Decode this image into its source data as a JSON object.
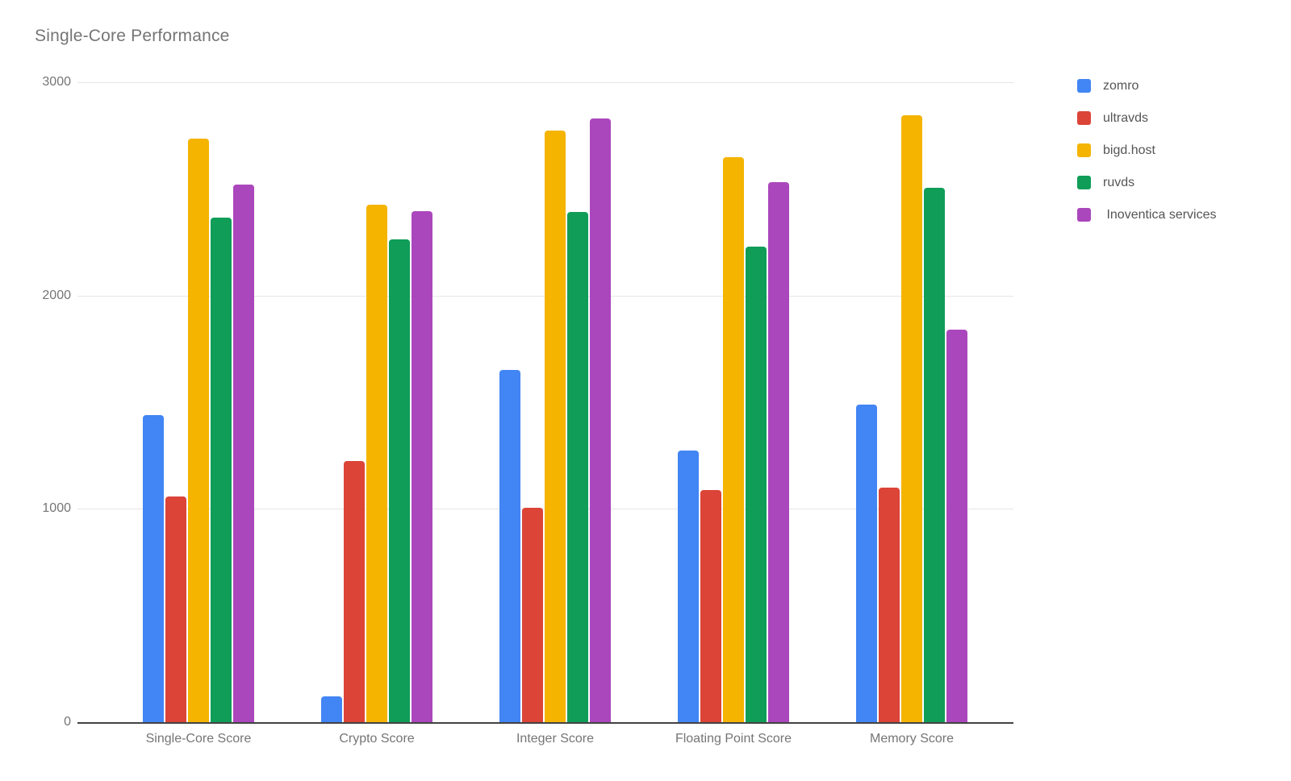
{
  "chart_data": {
    "type": "bar",
    "title": "Single-Core Performance",
    "categories": [
      "Single-Core Score",
      "Crypto Score",
      "Integer Score",
      "Floating Point Score",
      "Memory Score"
    ],
    "series": [
      {
        "name": "zomro",
        "color": "#4285F4",
        "values": [
          1440,
          120,
          1650,
          1275,
          1490
        ]
      },
      {
        "name": "ultravds",
        "color": "#DB4437",
        "values": [
          1060,
          1225,
          1005,
          1090,
          1100
        ]
      },
      {
        "name": "bigd.host",
        "color": "#F4B400",
        "values": [
          2735,
          2425,
          2775,
          2650,
          2845
        ]
      },
      {
        "name": "ruvds",
        "color": "#0F9D58",
        "values": [
          2365,
          2265,
          2390,
          2230,
          2505
        ]
      },
      {
        "name": " Inoventica services",
        "color": "#AB47BC",
        "values": [
          2520,
          2395,
          2830,
          2530,
          1840
        ]
      }
    ],
    "ylim": [
      0,
      3000
    ],
    "yticks": [
      0,
      1000,
      2000,
      3000
    ],
    "ytick_labels": [
      "0",
      "1000",
      "2000",
      "3000"
    ],
    "grid": true,
    "legend_position": "right",
    "xlabel": "",
    "ylabel": ""
  },
  "colors": {
    "background": "#ffffff",
    "axis_line": "#424242",
    "gridline": "#e6e6e6",
    "title_text": "#757575",
    "axis_label_text": "#757575",
    "legend_text": "#555555"
  }
}
